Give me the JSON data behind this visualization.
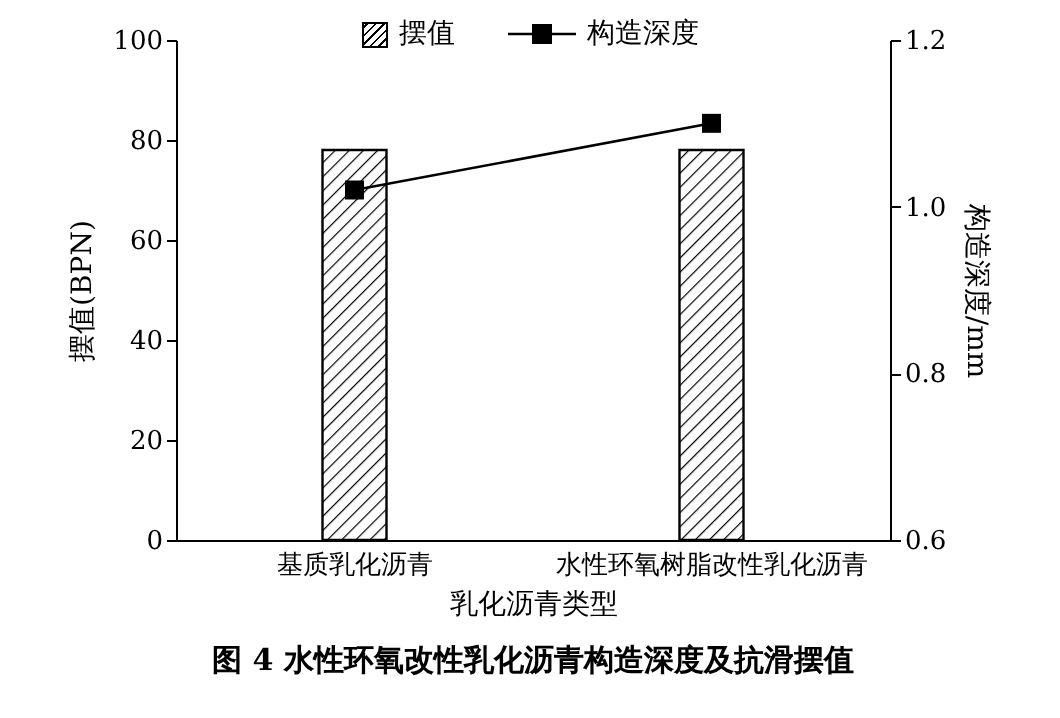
{
  "chart_data": {
    "type": "bar",
    "title": "图 4 水性环氧改性乳化沥青构造深度及抗滑摆值",
    "xlabel": "乳化沥青类型",
    "ylabel": "摆值(BPN)",
    "y2label": "构造深度/mm",
    "categories": [
      "基质乳化沥青",
      "水性环氧树脂改性乳化沥青"
    ],
    "series": [
      {
        "name": "摆值",
        "color": "#000000",
        "values": [
          78,
          78
        ]
      },
      {
        "name": "构造深度",
        "type": "line",
        "axis": "y2",
        "color": "#000000",
        "values": [
          1.02,
          1.1
        ]
      }
    ],
    "ylim": [
      0,
      100
    ],
    "yticks": [
      0,
      20,
      40,
      60,
      80,
      100
    ],
    "y2lim": [
      0.6,
      1.2
    ],
    "y2ticks": [
      0.6,
      0.8,
      {
        "value": 1,
        "label": "1.0"
      },
      1.2
    ],
    "legend": "top",
    "marker": "square",
    "line_style": "solid",
    "grid": false
  }
}
